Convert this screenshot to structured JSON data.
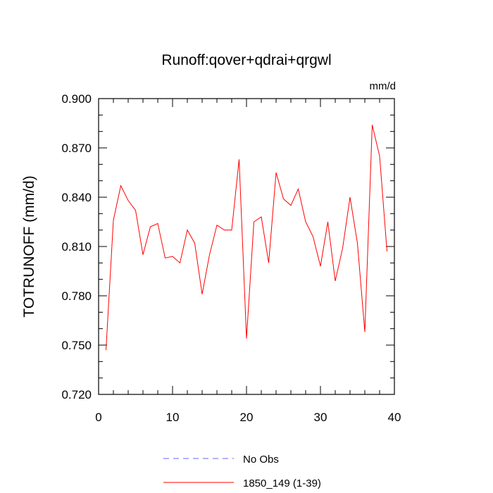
{
  "chart_data": {
    "type": "line",
    "title": "Runoff:qover+qdrai+qrgwl",
    "units": "mm/d",
    "ylabel": "TOTRUNOFF  (mm/d)",
    "xlabel": "",
    "xlim": [
      0,
      40
    ],
    "ylim": [
      0.72,
      0.9
    ],
    "x_ticks": [
      0,
      10,
      20,
      30,
      40
    ],
    "x_tick_labels": [
      "0",
      "10",
      "20",
      "30",
      "40"
    ],
    "y_ticks": [
      0.72,
      0.75,
      0.78,
      0.81,
      0.84,
      0.87,
      0.9
    ],
    "y_tick_labels": [
      "0.720",
      "0.750",
      "0.780",
      "0.810",
      "0.840",
      "0.870",
      "0.900"
    ],
    "grid": false,
    "legend_position": "bottom",
    "series": [
      {
        "name": "No Obs",
        "color": "#6666ff",
        "dash": true,
        "x": [],
        "values": []
      },
      {
        "name": "1850_149 (1-39)",
        "color": "#ff0000",
        "dash": false,
        "x": [
          1,
          2,
          3,
          4,
          5,
          6,
          7,
          8,
          9,
          10,
          11,
          12,
          13,
          14,
          15,
          16,
          17,
          18,
          19,
          20,
          21,
          22,
          23,
          24,
          25,
          26,
          27,
          28,
          29,
          30,
          31,
          32,
          33,
          34,
          35,
          36,
          37,
          38,
          39
        ],
        "values": [
          0.747,
          0.826,
          0.847,
          0.838,
          0.832,
          0.805,
          0.822,
          0.824,
          0.803,
          0.804,
          0.8,
          0.82,
          0.812,
          0.781,
          0.805,
          0.823,
          0.82,
          0.82,
          0.863,
          0.754,
          0.825,
          0.828,
          0.8,
          0.855,
          0.839,
          0.835,
          0.845,
          0.825,
          0.816,
          0.798,
          0.825,
          0.789,
          0.809,
          0.84,
          0.812,
          0.758,
          0.884,
          0.865,
          0.807
        ]
      }
    ]
  }
}
